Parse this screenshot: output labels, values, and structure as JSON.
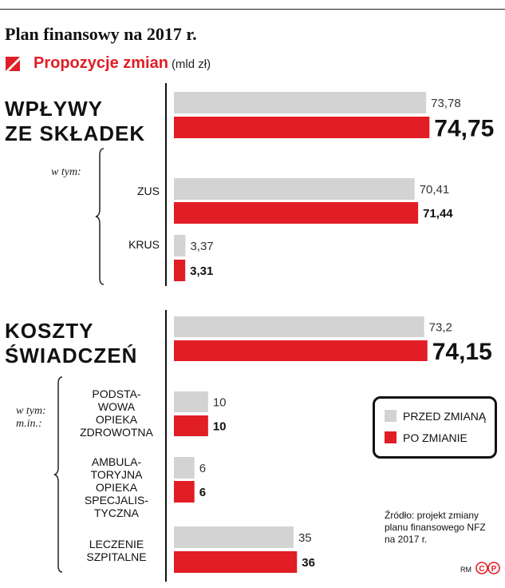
{
  "title": "Plan finansowy na 2017 r.",
  "subtitle": "Propozycje zmian",
  "unit": "(mld zł)",
  "sections": {
    "income": {
      "label_line1": "WPŁYWY",
      "label_line2": "ZE SKŁADEK",
      "sub_intro": "w tym:"
    },
    "costs": {
      "label_line1": "KOSZTY",
      "label_line2": "ŚWIADCZEŃ",
      "sub_intro_line1": "w tym:",
      "sub_intro_line2": "m.in.:"
    }
  },
  "category_labels": {
    "zus": "ZUS",
    "krus": "KRUS",
    "poz": [
      "PODSTA-",
      "WOWA",
      "OPIEKA",
      "ZDROWOTNA"
    ],
    "aos": [
      "AMBULA-",
      "TORYJNA",
      "OPIEKA",
      "SPECJALIS-",
      "TYCZNA"
    ],
    "szpital": [
      "LECZENIE",
      "SZPITALNE"
    ]
  },
  "legend": {
    "before": "PRZED ZMIANĄ",
    "after": "PO ZMIANIE"
  },
  "source": [
    "Źródło: projekt zmiany",
    "planu finansowego NFZ",
    "na 2017 r."
  ],
  "initials": "RM",
  "logo_text": "CP",
  "colors": {
    "before": "#d3d3d3",
    "after": "#e11d26",
    "accent": "#e11d26"
  },
  "chart_data": {
    "type": "bar",
    "orientation": "horizontal",
    "categories": [
      "WPŁYWY ZE SKŁADEK",
      "ZUS",
      "KRUS",
      "KOSZTY ŚWIADCZEŃ",
      "PODSTAWOWA OPIEKA ZDROWOTNA",
      "AMBULATORYJNA OPIEKA SPECJALISTYCZNA",
      "LECZENIE SZPITALNE"
    ],
    "series": [
      {
        "name": "PRZED ZMIANĄ",
        "values": [
          73.78,
          70.41,
          3.37,
          73.2,
          10,
          6,
          35
        ],
        "labels": [
          "73,78",
          "70,41",
          "3,37",
          "73,2",
          "10",
          "6",
          "35"
        ]
      },
      {
        "name": "PO ZMIANIE",
        "values": [
          74.75,
          71.44,
          3.31,
          74.15,
          10,
          6,
          36
        ],
        "labels": [
          "74,75",
          "71,44",
          "3,31",
          "74,15",
          "10",
          "6",
          "36"
        ]
      }
    ],
    "title": "Plan finansowy na 2017 r.",
    "subtitle": "Propozycje zmian (mld zł)",
    "xlabel": "",
    "ylabel": "",
    "grid": false,
    "legend_position": "right"
  }
}
